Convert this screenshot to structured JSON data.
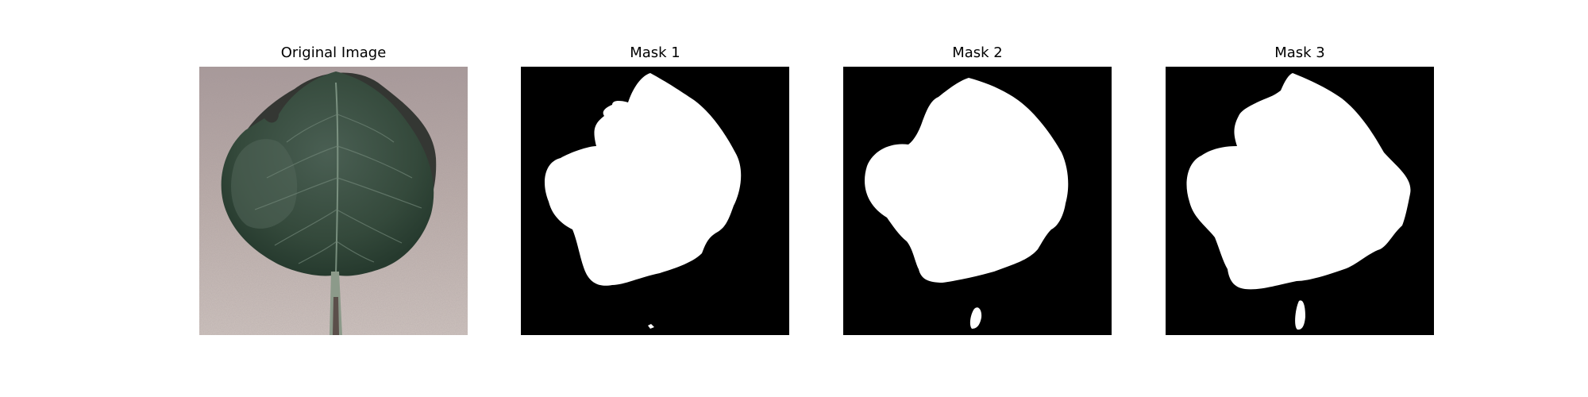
{
  "figure": {
    "panels": [
      {
        "title": "Original Image",
        "kind": "photo",
        "subject": "green leaf on pinkish-grey textured background"
      },
      {
        "title": "Mask 1",
        "kind": "mask"
      },
      {
        "title": "Mask 2",
        "kind": "mask"
      },
      {
        "title": "Mask 3",
        "kind": "mask"
      }
    ]
  },
  "colors": {
    "background": "#ffffff",
    "mask_background": "#000000",
    "mask_foreground": "#ffffff",
    "leaf": "#34493b",
    "photo_background": "#b8a8a8"
  }
}
